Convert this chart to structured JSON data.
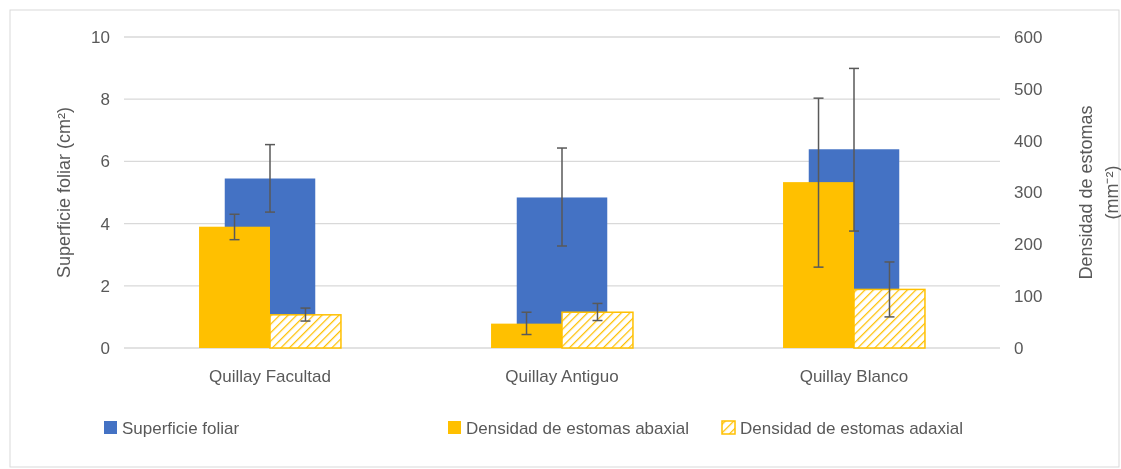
{
  "chart_data": {
    "type": "bar",
    "categories": [
      "Quillay Facultad",
      "Quillay Antiguo",
      "Quillay Blanco"
    ],
    "ylabel": "Superficie foliar  (cm²)",
    "y2label": "Densidad de estomas (mm⁻²)",
    "ylim": [
      0,
      10
    ],
    "yticks": [
      0,
      2,
      4,
      6,
      8,
      10
    ],
    "y2lim": [
      0,
      600
    ],
    "y2ticks": [
      0,
      100,
      200,
      300,
      400,
      500,
      600
    ],
    "grid": "y",
    "legend": "bottom",
    "series": [
      {
        "name": "Superficie foliar",
        "color": "#4472c4",
        "values": [
          5.45,
          4.84,
          6.39
        ],
        "errors": [
          [
            4.37,
            6.54
          ],
          [
            3.28,
            6.43
          ],
          [
            3.76,
            8.99
          ]
        ]
      },
      {
        "name": "Densidad de estomas abaxial",
        "color": "#ffc000",
        "axis": "y2",
        "values": [
          234,
          47,
          320
        ],
        "errors": [
          [
            209,
            258
          ],
          [
            26,
            69
          ],
          [
            156,
            482
          ]
        ]
      },
      {
        "name": "Densidad de estomas adaxial",
        "color": "#ffc000",
        "axis": "y2",
        "values": [
          64,
          69,
          113
        ],
        "errors": [
          [
            52,
            77
          ],
          [
            53,
            86
          ],
          [
            60,
            166
          ]
        ]
      }
    ]
  }
}
